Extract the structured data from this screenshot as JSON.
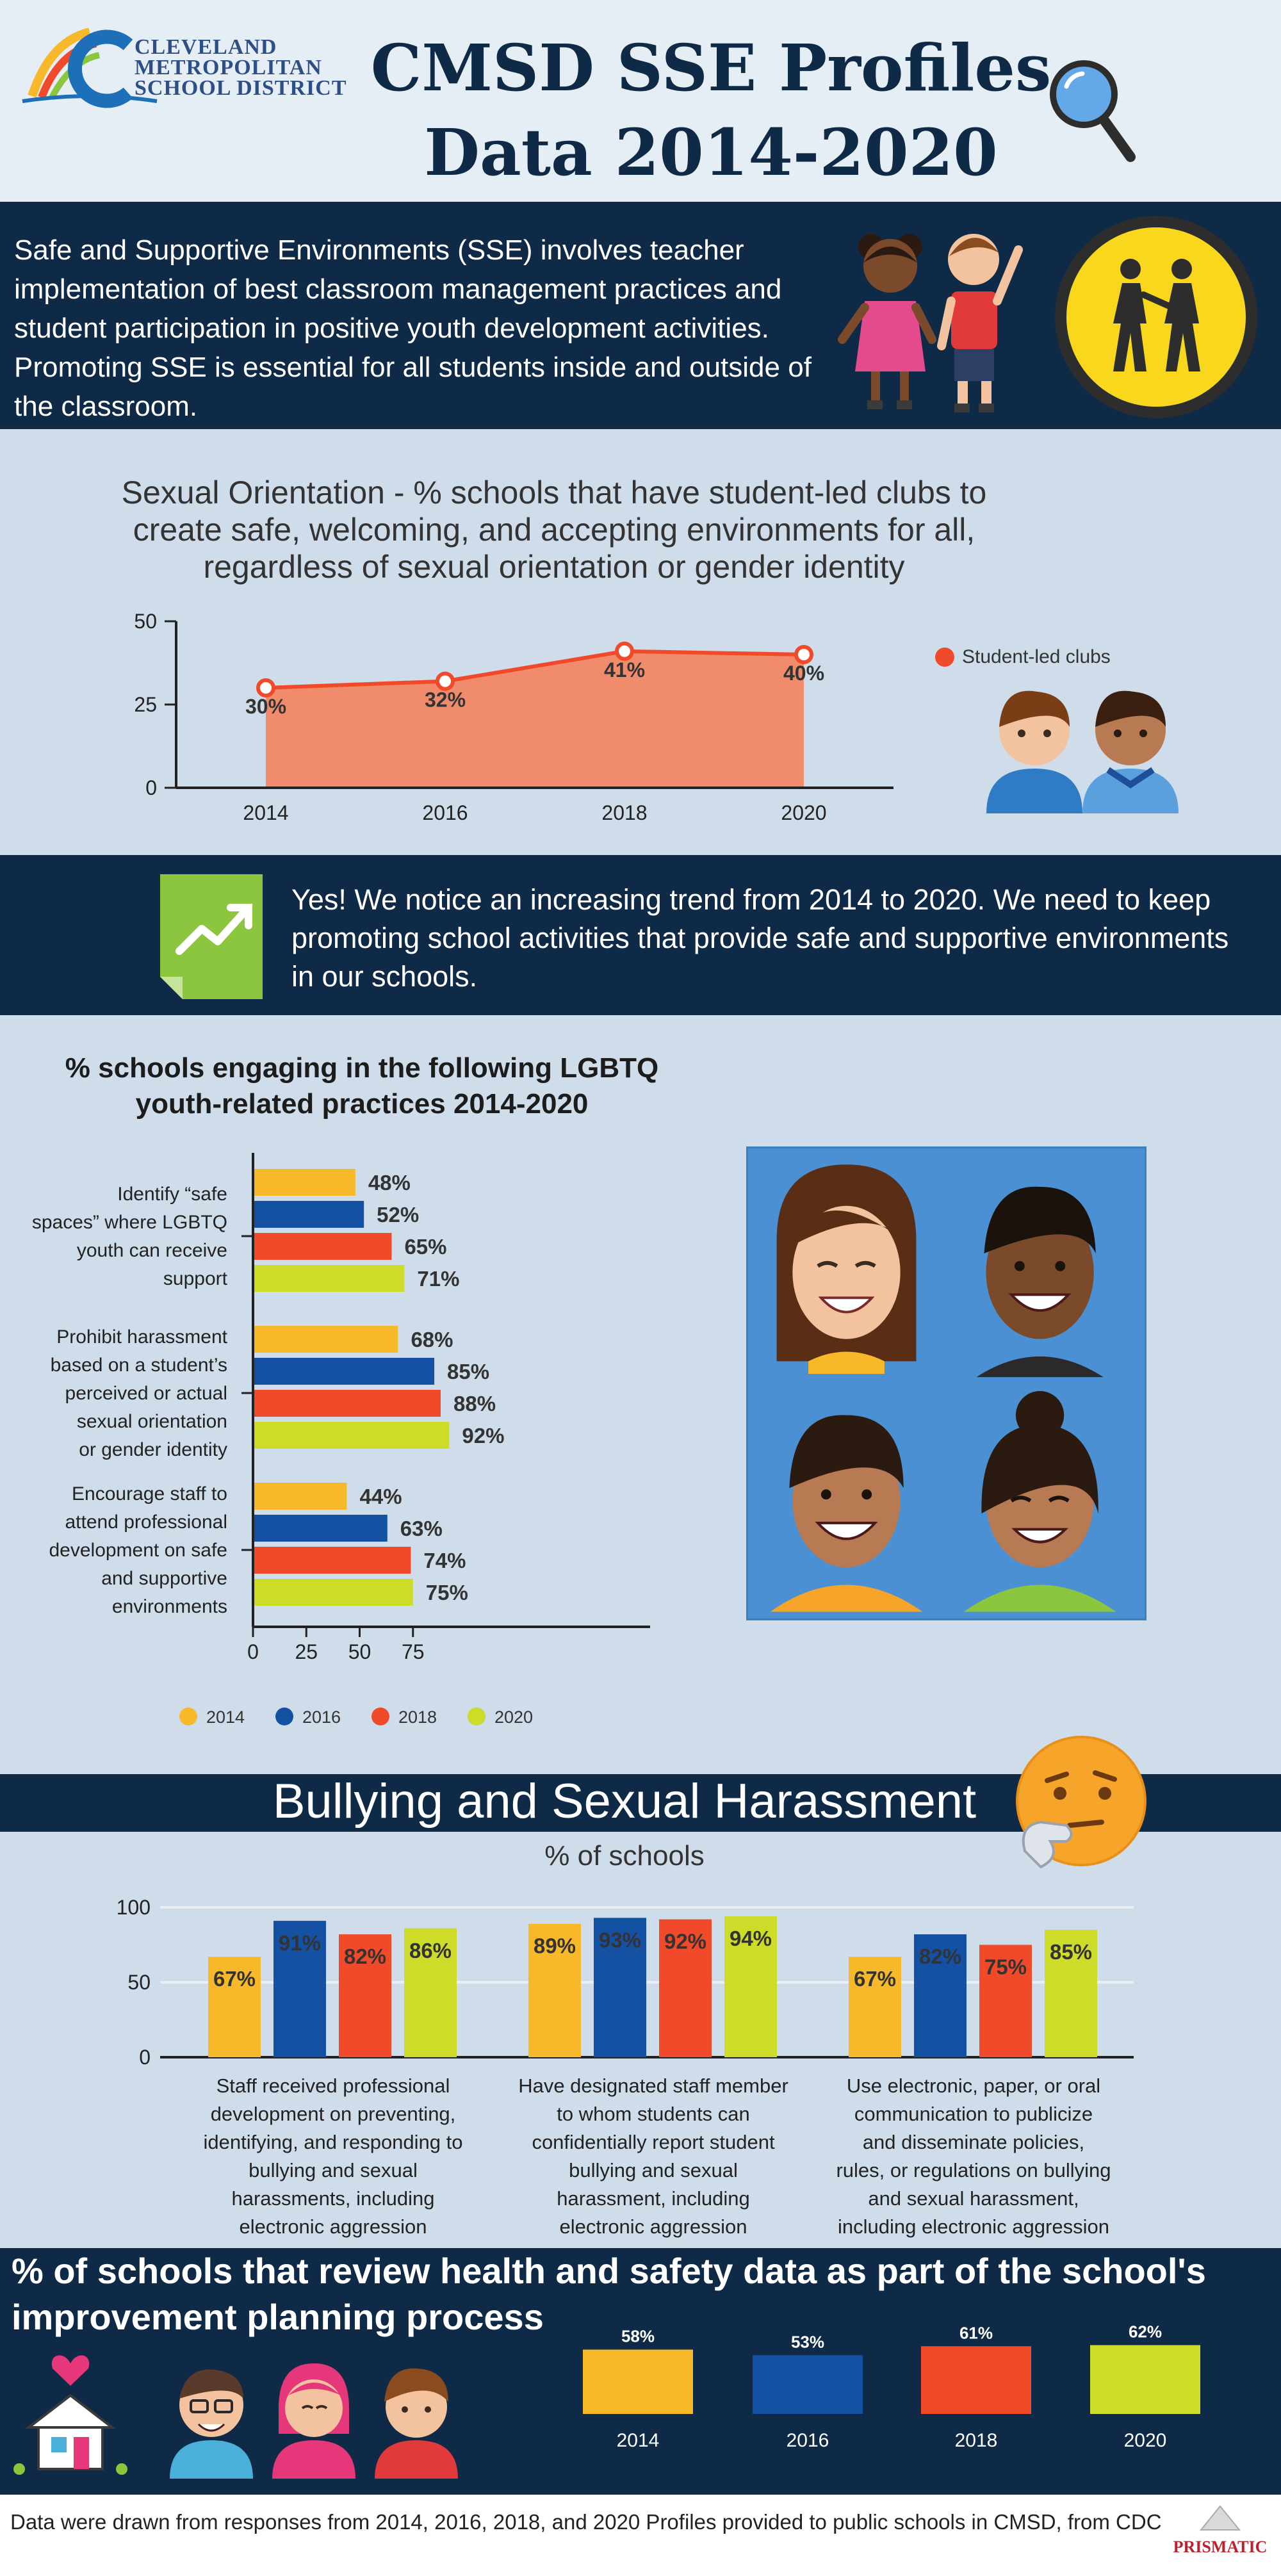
{
  "header": {
    "logo_lines": [
      "CLEVELAND",
      "METROPOLITAN",
      "SCHOOL DISTRICT"
    ],
    "title_line1": "CMSD SSE Profiles",
    "title_line2": "Data 2014-2020"
  },
  "intro": {
    "text": "Safe and Supportive Environments (SSE) involves teacher implementation of best classroom management practices and student participation in positive youth development activities. Promoting SSE is essential for all students inside and outside of the classroom."
  },
  "colors": {
    "navy": "#0e2a47",
    "y2014": "#f7b829",
    "y2016": "#1551a3",
    "y2018": "#f04a2a",
    "y2020": "#cddc29",
    "area": "#f08c6c"
  },
  "icons": [
    "magnifier-icon",
    "kids-icon",
    "walking-people-icon",
    "two-boys-icon",
    "trend-up-icon",
    "thinking-face-icon",
    "house-heart-icon",
    "people-icon",
    "prismatic-logo"
  ],
  "so_section": {
    "title": "Sexual Orientation - % schools that have student-led clubs to create safe, welcoming, and accepting environments for all, regardless of sexual orientation or gender identity",
    "legend_label": "Student-led clubs"
  },
  "trend": {
    "text": "Yes! We notice an increasing trend from 2014 to 2020. We need to keep promoting school activities that provide safe and supportive environments in our schools."
  },
  "lgbtq_section": {
    "title_line1": "% schools engaging in the following LGBTQ",
    "title_line2": "youth-related practices 2014-2020",
    "legend": [
      "2014",
      "2016",
      "2018",
      "2020"
    ]
  },
  "bullying": {
    "title": "Bullying and Sexual Harassment",
    "subtitle": "% of schools",
    "captions": [
      "Staff received professional development on preventing, identifying, and responding to bullying and sexual harassments, including electronic aggression",
      "Have designated staff member to whom students can confidentially report student bullying and sexual harassment, including electronic aggression",
      "Use electronic, paper, or oral communication to publicize and disseminate policies, rules, or regulations on bullying and sexual harassment, including electronic aggression"
    ]
  },
  "review": {
    "title": "% of schools that review health and safety data as part of the school's improvement planning process"
  },
  "footer": {
    "text": "Data were drawn from responses from 2014, 2016, 2018, and 2020 Profiles provided to public schools in CMSD, from CDC",
    "logo_text": "PRISMATIC"
  },
  "chart_data": [
    {
      "type": "area",
      "title": "",
      "x": [
        "2014",
        "2016",
        "2018",
        "2020"
      ],
      "series": [
        {
          "name": "Student-led clubs",
          "values": [
            30,
            32,
            41,
            40
          ]
        }
      ],
      "data_labels": [
        "30%",
        "32%",
        "41%",
        "40%"
      ],
      "ylim": [
        0,
        50
      ],
      "yticks": [
        "0",
        "25",
        "50"
      ]
    },
    {
      "type": "bar",
      "orientation": "horizontal",
      "categories": [
        "Identify “safe spaces” where LGBTQ youth can receive support",
        "Prohibit harassment based on a student’s perceived or actual sexual orientation or gender identity",
        "Encourage staff to attend professional development on safe and supportive environments"
      ],
      "series": [
        {
          "name": "2014",
          "values": [
            48,
            68,
            44
          ]
        },
        {
          "name": "2016",
          "values": [
            52,
            85,
            63
          ]
        },
        {
          "name": "2018",
          "values": [
            65,
            88,
            74
          ]
        },
        {
          "name": "2020",
          "values": [
            71,
            92,
            75
          ]
        }
      ],
      "xticks": [
        "0",
        "25",
        "50",
        "75"
      ],
      "xlim": [
        0,
        92
      ]
    },
    {
      "type": "bar",
      "title": "% of schools",
      "categories": [
        "Staff PD",
        "Designated staff member",
        "Communication"
      ],
      "series": [
        {
          "name": "2014",
          "values": [
            67,
            89,
            67
          ]
        },
        {
          "name": "2016",
          "values": [
            91,
            93,
            82
          ]
        },
        {
          "name": "2018",
          "values": [
            82,
            92,
            75
          ]
        },
        {
          "name": "2020",
          "values": [
            86,
            94,
            85
          ]
        }
      ],
      "ylim": [
        0,
        100
      ],
      "yticks": [
        "0",
        "50",
        "100"
      ]
    },
    {
      "type": "bar",
      "categories": [
        "2014",
        "2016",
        "2018",
        "2020"
      ],
      "values": [
        58,
        53,
        61,
        62
      ],
      "data_labels": [
        "58%",
        "53%",
        "61%",
        "62%"
      ]
    }
  ]
}
